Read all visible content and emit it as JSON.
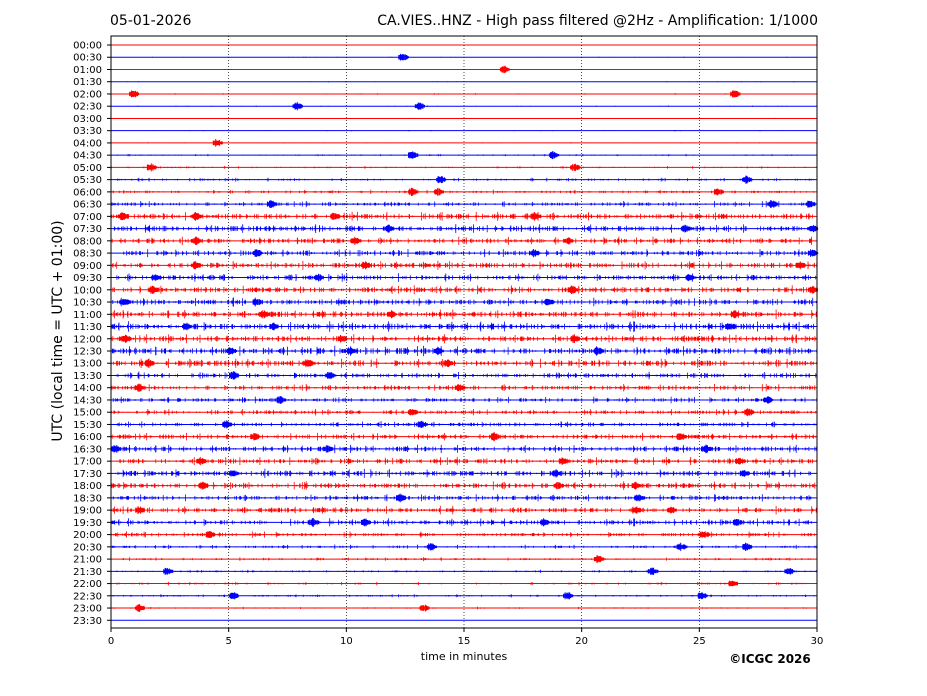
{
  "header": {
    "date": "05-01-2026",
    "title": "CA.VIES..HNZ - High pass filtered @2Hz - Amplification: 1/1000"
  },
  "footer": {
    "copyright": "©ICGC 2026"
  },
  "colors": {
    "red_trace": "#ff0000",
    "blue_trace": "#0000ff",
    "frame": "#000000",
    "grid": "#000000",
    "background": "#ffffff"
  },
  "chart_data": {
    "type": "line",
    "title": "CA.VIES..HNZ - High pass filtered @2Hz - Amplification: 1/1000",
    "xlabel": "time in minutes",
    "ylabel": "UTC (local time = UTC + 01:00)",
    "xlim": [
      0,
      30
    ],
    "x_ticks": [
      "0",
      "5",
      "10",
      "15",
      "20",
      "25",
      "30"
    ],
    "vertical_grid": "dotted at 5, 10, 15, 20, 25",
    "trace_colors": "alternating red / blue per row",
    "rows": [
      {
        "label": "00:00",
        "color": "red",
        "activity": 0.1,
        "events": []
      },
      {
        "label": "00:30",
        "color": "blue",
        "activity": 0.1,
        "events": [
          12.4
        ]
      },
      {
        "label": "01:00",
        "color": "red",
        "activity": 0.1,
        "events": [
          16.7
        ]
      },
      {
        "label": "01:30",
        "color": "blue",
        "activity": 0.1,
        "events": []
      },
      {
        "label": "02:00",
        "color": "red",
        "activity": 0.15,
        "events": [
          0.95,
          26.5
        ]
      },
      {
        "label": "02:30",
        "color": "blue",
        "activity": 0.12,
        "events": [
          7.9,
          13.1
        ]
      },
      {
        "label": "03:00",
        "color": "red",
        "activity": 0.1,
        "events": []
      },
      {
        "label": "03:30",
        "color": "blue",
        "activity": 0.12,
        "events": []
      },
      {
        "label": "04:00",
        "color": "red",
        "activity": 0.12,
        "events": [
          4.5
        ]
      },
      {
        "label": "04:30",
        "color": "blue",
        "activity": 0.2,
        "events": [
          12.8,
          18.8
        ]
      },
      {
        "label": "05:00",
        "color": "red",
        "activity": 0.25,
        "events": [
          1.7,
          19.7
        ]
      },
      {
        "label": "05:30",
        "color": "blue",
        "activity": 0.35,
        "events": [
          14.0,
          27.0
        ]
      },
      {
        "label": "06:00",
        "color": "red",
        "activity": 0.4,
        "events": [
          12.8,
          13.9,
          25.8
        ]
      },
      {
        "label": "06:30",
        "color": "blue",
        "activity": 0.55,
        "events": [
          6.8,
          28.1,
          29.7
        ]
      },
      {
        "label": "07:00",
        "color": "red",
        "activity": 0.8,
        "events": [
          0.5,
          3.6,
          9.5,
          18.0
        ]
      },
      {
        "label": "07:30",
        "color": "blue",
        "activity": 0.8,
        "events": [
          11.8,
          24.4,
          29.8
        ]
      },
      {
        "label": "08:00",
        "color": "red",
        "activity": 0.75,
        "events": [
          3.6,
          10.4,
          19.4
        ]
      },
      {
        "label": "08:30",
        "color": "blue",
        "activity": 0.7,
        "events": [
          6.2,
          18.0,
          29.8
        ]
      },
      {
        "label": "09:00",
        "color": "red",
        "activity": 0.8,
        "events": [
          3.6,
          10.8,
          29.3
        ]
      },
      {
        "label": "09:30",
        "color": "blue",
        "activity": 0.75,
        "events": [
          1.9,
          8.8,
          24.6
        ]
      },
      {
        "label": "10:00",
        "color": "red",
        "activity": 0.8,
        "events": [
          1.8,
          19.6,
          29.8
        ]
      },
      {
        "label": "10:30",
        "color": "blue",
        "activity": 0.8,
        "events": [
          0.6,
          6.2,
          18.6
        ]
      },
      {
        "label": "11:00",
        "color": "red",
        "activity": 0.85,
        "events": [
          6.5,
          11.9,
          26.5
        ]
      },
      {
        "label": "11:30",
        "color": "blue",
        "activity": 0.9,
        "events": [
          3.2,
          6.9,
          26.3
        ]
      },
      {
        "label": "12:00",
        "color": "red",
        "activity": 0.85,
        "events": [
          0.6,
          9.8,
          19.7
        ]
      },
      {
        "label": "12:30",
        "color": "blue",
        "activity": 0.9,
        "events": [
          5.1,
          10.2,
          13.9,
          20.7
        ]
      },
      {
        "label": "13:00",
        "color": "red",
        "activity": 0.85,
        "events": [
          1.6,
          8.4,
          14.3
        ]
      },
      {
        "label": "13:30",
        "color": "blue",
        "activity": 0.7,
        "events": [
          5.2,
          9.3
        ]
      },
      {
        "label": "14:00",
        "color": "red",
        "activity": 0.65,
        "events": [
          1.2,
          14.8
        ]
      },
      {
        "label": "14:30",
        "color": "blue",
        "activity": 0.6,
        "events": [
          7.2,
          27.9
        ]
      },
      {
        "label": "15:00",
        "color": "red",
        "activity": 0.6,
        "events": [
          12.8,
          27.1
        ]
      },
      {
        "label": "15:30",
        "color": "blue",
        "activity": 0.6,
        "events": [
          4.9,
          13.2
        ]
      },
      {
        "label": "16:00",
        "color": "red",
        "activity": 0.7,
        "events": [
          6.1,
          16.3,
          24.2
        ]
      },
      {
        "label": "16:30",
        "color": "blue",
        "activity": 0.75,
        "events": [
          0.2,
          9.2,
          25.3
        ]
      },
      {
        "label": "17:00",
        "color": "red",
        "activity": 0.75,
        "events": [
          3.8,
          19.2,
          26.7
        ]
      },
      {
        "label": "17:30",
        "color": "blue",
        "activity": 0.8,
        "events": [
          5.2,
          18.9,
          26.9
        ]
      },
      {
        "label": "18:00",
        "color": "red",
        "activity": 0.75,
        "events": [
          3.9,
          19.0,
          22.3
        ]
      },
      {
        "label": "18:30",
        "color": "blue",
        "activity": 0.65,
        "events": [
          12.3,
          22.4
        ]
      },
      {
        "label": "19:00",
        "color": "red",
        "activity": 0.75,
        "events": [
          1.2,
          22.3,
          23.8
        ]
      },
      {
        "label": "19:30",
        "color": "blue",
        "activity": 0.7,
        "events": [
          8.6,
          10.8,
          18.4,
          26.6
        ]
      },
      {
        "label": "20:00",
        "color": "red",
        "activity": 0.55,
        "events": [
          4.2,
          25.2
        ]
      },
      {
        "label": "20:30",
        "color": "blue",
        "activity": 0.4,
        "events": [
          13.6,
          24.2,
          27.0
        ]
      },
      {
        "label": "21:00",
        "color": "red",
        "activity": 0.35,
        "events": [
          20.7
        ]
      },
      {
        "label": "21:30",
        "color": "blue",
        "activity": 0.3,
        "events": [
          2.4,
          23.0,
          28.8
        ]
      },
      {
        "label": "22:00",
        "color": "red",
        "activity": 0.3,
        "events": [
          26.4
        ]
      },
      {
        "label": "22:30",
        "color": "blue",
        "activity": 0.3,
        "events": [
          5.2,
          19.4,
          25.1
        ]
      },
      {
        "label": "23:00",
        "color": "red",
        "activity": 0.22,
        "events": [
          1.2,
          13.3
        ]
      },
      {
        "label": "23:30",
        "color": "blue",
        "activity": 0.0,
        "events": []
      }
    ]
  }
}
